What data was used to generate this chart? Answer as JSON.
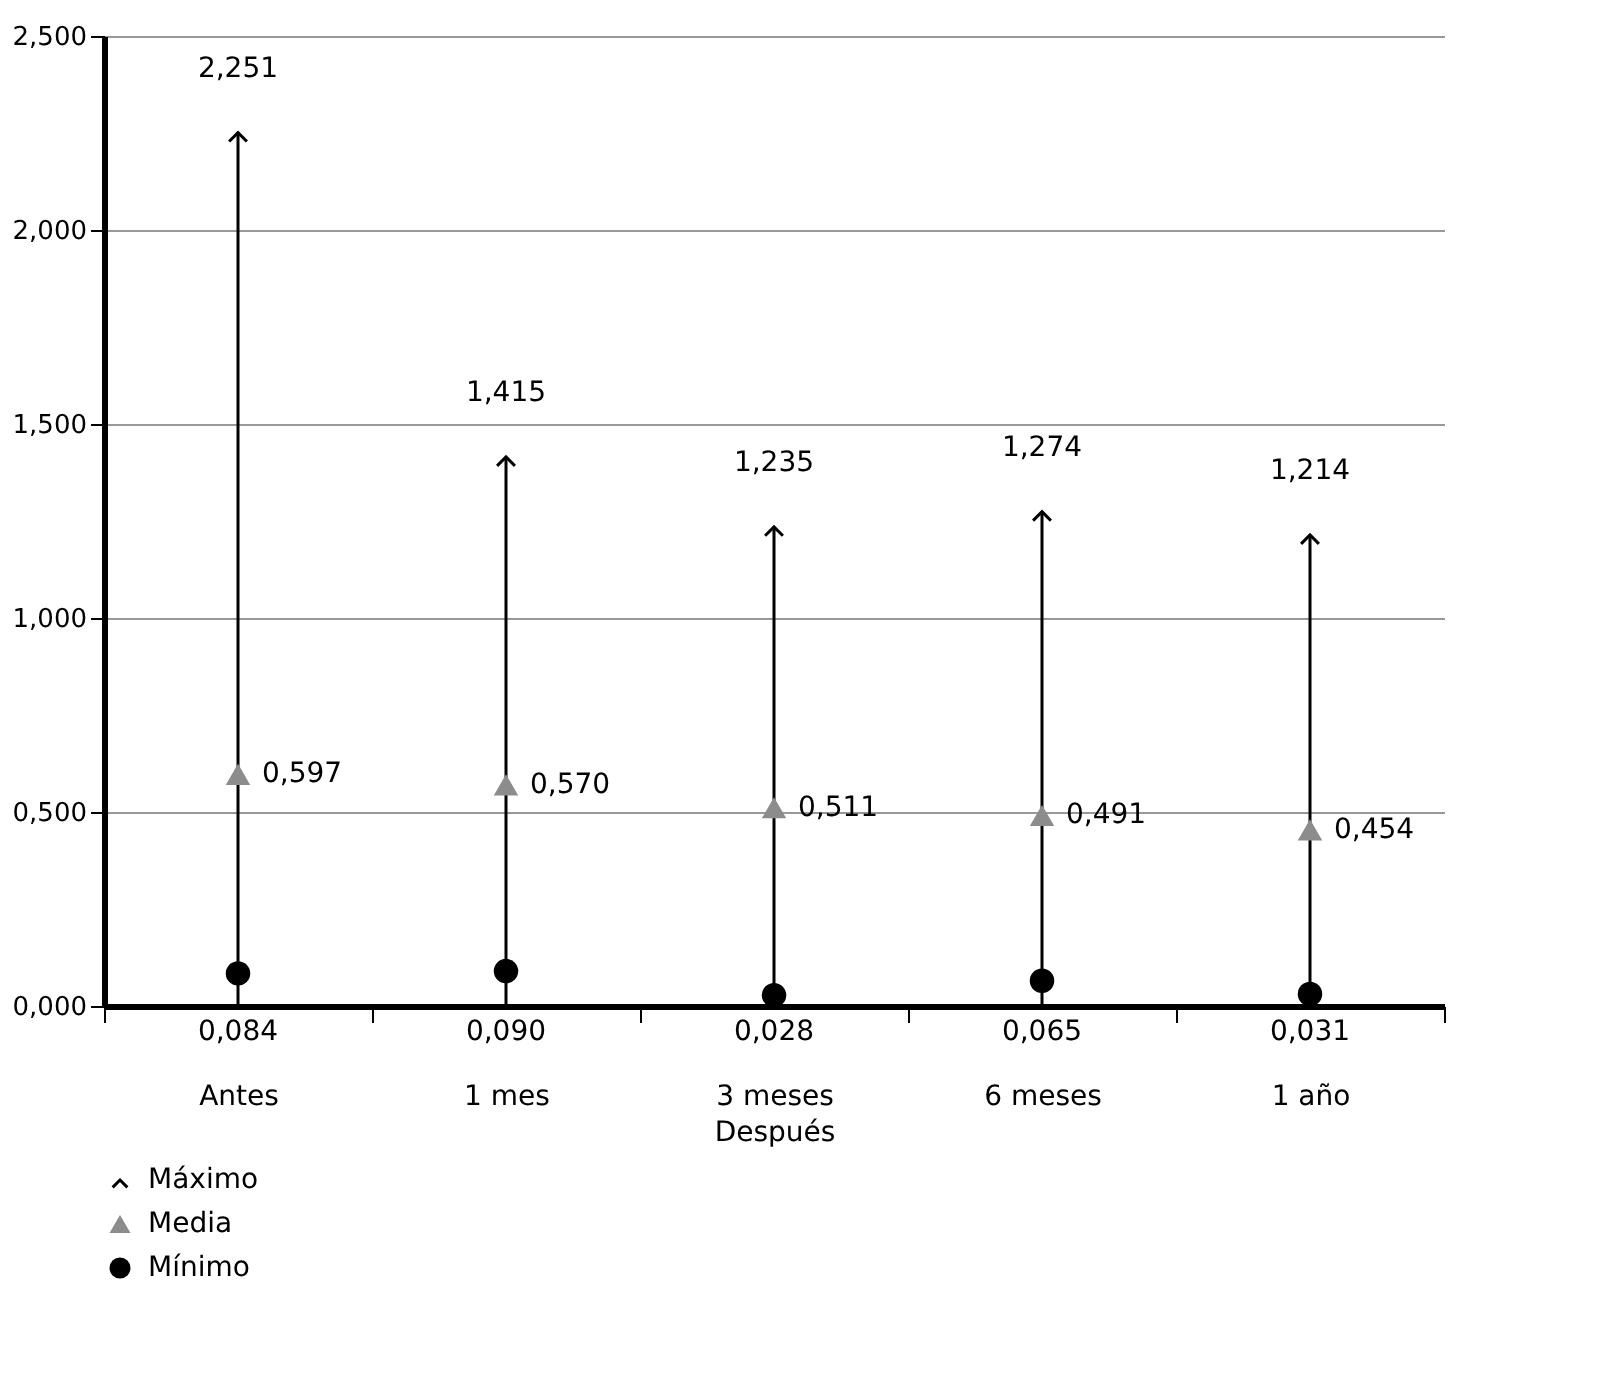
{
  "chart_data": {
    "type": "scatter",
    "categories": [
      "Antes",
      "1 mes",
      "3 meses",
      "6 meses",
      "1 año"
    ],
    "xlabel": "Después",
    "series": [
      {
        "name": "Máximo",
        "type": "lollipop",
        "color": "#000000",
        "values": [
          2.251,
          1.415,
          1.235,
          1.274,
          1.214
        ],
        "value_labels": [
          "2,251",
          "1,415",
          "1,235",
          "1,274",
          "1,214"
        ]
      },
      {
        "name": "Media",
        "marker": "triangle",
        "color": "#8c8c8c",
        "values": [
          0.597,
          0.57,
          0.511,
          0.491,
          0.454
        ],
        "value_labels": [
          "0,597",
          "0,570",
          "0,511",
          "0,491",
          "0,454"
        ]
      },
      {
        "name": "Mínimo",
        "marker": "circle",
        "color": "#000000",
        "values": [
          0.084,
          0.09,
          0.028,
          0.065,
          0.031
        ],
        "value_labels": [
          "0,084",
          "0,090",
          "0,028",
          "0,065",
          "0,031"
        ]
      }
    ],
    "ylim": [
      0,
      2.5
    ],
    "yticks": [
      {
        "value": 0,
        "label": "0,000"
      },
      {
        "value": 0.5,
        "label": "0,500"
      },
      {
        "value": 1,
        "label": "1,000"
      },
      {
        "value": 1.5,
        "label": "1,500"
      },
      {
        "value": 2,
        "label": "2,000"
      },
      {
        "value": 2.5,
        "label": "2,500"
      }
    ],
    "grid": "y",
    "legend": "bottom left"
  }
}
